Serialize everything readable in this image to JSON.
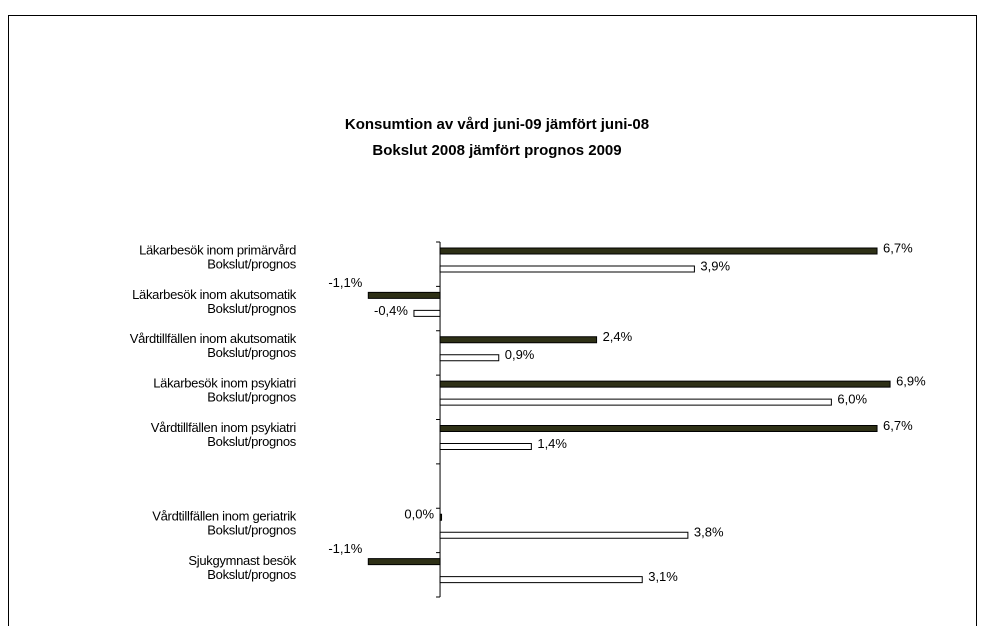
{
  "chart_data": {
    "type": "hbar",
    "title": "Konsumtion av vård juni-09 jämfört juni-08",
    "subtitle": "Bokslut 2008 jämfört prognos 2009",
    "categories": [
      [
        "Läkarbesök inom primärvård",
        "Bokslut/prognos"
      ],
      [
        "Läkarbesök inom akutsomatik",
        "Bokslut/prognos"
      ],
      [
        "Vårdtillfällen inom akutsomatik",
        "Bokslut/prognos"
      ],
      [
        "Läkarbesök inom psykiatri",
        "Bokslut/prognos"
      ],
      [
        "Vårdtillfällen inom psykiatri",
        "Bokslut/prognos"
      ],
      null,
      [
        "Vårdtillfällen inom geriatrik",
        "Bokslut/prognos"
      ],
      [
        "Sjukgymnast besök",
        "Bokslut/prognos"
      ]
    ],
    "series": [
      {
        "color": "#2e3016",
        "values": [
          6.7,
          -1.1,
          2.4,
          6.9,
          6.7,
          null,
          0.0,
          -1.1
        ],
        "value_labels": [
          "6,7%",
          "-1,1%",
          "2,4%",
          "6,9%",
          "6,7%",
          null,
          "0,0%",
          "-1,1%"
        ]
      },
      {
        "color": "#ffffff",
        "values": [
          3.9,
          -0.4,
          0.9,
          6.0,
          1.4,
          null,
          3.8,
          3.1
        ],
        "value_labels": [
          "3,9%",
          "-0,4%",
          "0,9%",
          "6,0%",
          "1,4%",
          null,
          "3,8%",
          "3,1%"
        ]
      }
    ],
    "xlim": [
      -2,
      7
    ]
  }
}
